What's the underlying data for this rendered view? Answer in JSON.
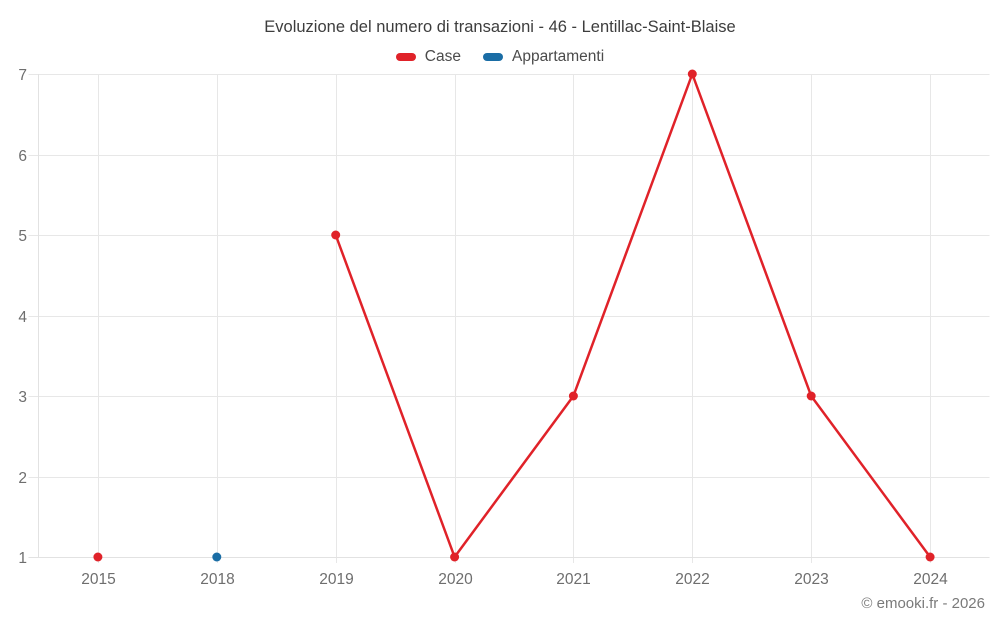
{
  "title": "Evoluzione del numero di transazioni - 46 - Lentillac-Saint-Blaise",
  "legend": {
    "items": [
      {
        "label": "Case",
        "color": "#e02229"
      },
      {
        "label": "Appartamenti",
        "color": "#1a6da5"
      }
    ]
  },
  "footer": {
    "text": "© emooki.fr - 2026"
  },
  "colors": {
    "background": "#ffffff",
    "grid": "#e7e7e7",
    "axis_line": "#e2e2e2",
    "axis_label": "#6e6e6e",
    "title_text": "#3d3d3d",
    "legend_text": "#4b4b4b",
    "footer_text": "#7a7a7a",
    "case_red": "#e02229",
    "appartamenti_blue": "#1a6da5"
  },
  "chart_data": {
    "type": "line",
    "title": "Evoluzione del numero di transazioni - 46 - Lentillac-Saint-Blaise",
    "xlabel": "",
    "ylabel": "",
    "categories": [
      "2015",
      "2018",
      "2019",
      "2020",
      "2021",
      "2022",
      "2023",
      "2024"
    ],
    "series": [
      {
        "name": "Case",
        "color": "#e02229",
        "values": [
          1,
          null,
          5,
          1,
          3,
          7,
          3,
          1
        ]
      },
      {
        "name": "Appartamenti",
        "color": "#1a6da5",
        "values": [
          null,
          1,
          null,
          null,
          null,
          null,
          null,
          null
        ]
      }
    ],
    "ylim": [
      1,
      7
    ],
    "yticks": [
      1,
      2,
      3,
      4,
      5,
      6,
      7
    ],
    "grid": true,
    "legend_position": "top-center",
    "marker_radius": 4.5,
    "line_width": 2.5
  }
}
